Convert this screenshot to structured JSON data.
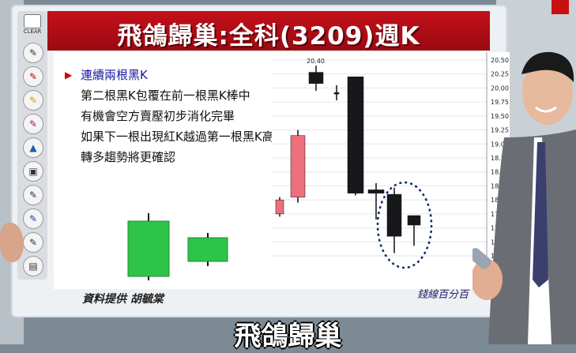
{
  "title": "飛鴿歸巢:全科(3209)週K",
  "toolbar": {
    "clear_label": "CLEAR"
  },
  "description_lines": [
    "連續兩根黑K",
    "第二根黑K包覆在前一根黑K棒中",
    "有機會空方賣壓初步消化完畢",
    "如果下一根出現紅K越過第一根黑K高",
    "轉多趨勢將更確認"
  ],
  "credit": "資料提供 胡毓棠",
  "logo": "錢線百分百",
  "caption": "飛鴿歸巢",
  "price_axis": [
    "20.50",
    "20.25",
    "20.00",
    "19.75",
    "19.50",
    "19.25",
    "19.00",
    "18.75",
    "18.50",
    "18.25",
    "18.00",
    "17.75",
    "17.50",
    "17.25",
    "17.00"
  ],
  "high_label": "20.40",
  "colors": {
    "header_red": "#b50d16",
    "up_candle": "#ee6f7c",
    "down_candle": "#16181c",
    "green_candle": "#2ec449",
    "circle": "#0e2a6b"
  },
  "candles": [
    {
      "type": "up",
      "open": 17.75,
      "close": 18.0,
      "high": 18.05,
      "low": 17.7
    },
    {
      "type": "up",
      "open": 18.05,
      "close": 19.15,
      "high": 19.25,
      "low": 17.95
    },
    {
      "type": "down",
      "open": 20.28,
      "close": 20.08,
      "high": 20.4,
      "low": 19.95
    },
    {
      "type": "down",
      "open": 19.92,
      "close": 19.9,
      "high": 20.05,
      "low": 19.78
    },
    {
      "type": "down",
      "open": 20.2,
      "close": 18.12,
      "high": 20.2,
      "low": 18.08
    },
    {
      "type": "down",
      "open": 18.18,
      "close": 18.12,
      "high": 18.3,
      "low": 17.65
    },
    {
      "type": "down",
      "open": 18.1,
      "close": 17.35,
      "high": 18.22,
      "low": 17.05
    },
    {
      "type": "down",
      "open": 17.72,
      "close": 17.55,
      "high": 17.72,
      "low": 17.18
    }
  ],
  "illustration_candles": [
    {
      "type": "green",
      "size": "large"
    },
    {
      "type": "green",
      "size": "small"
    }
  ]
}
